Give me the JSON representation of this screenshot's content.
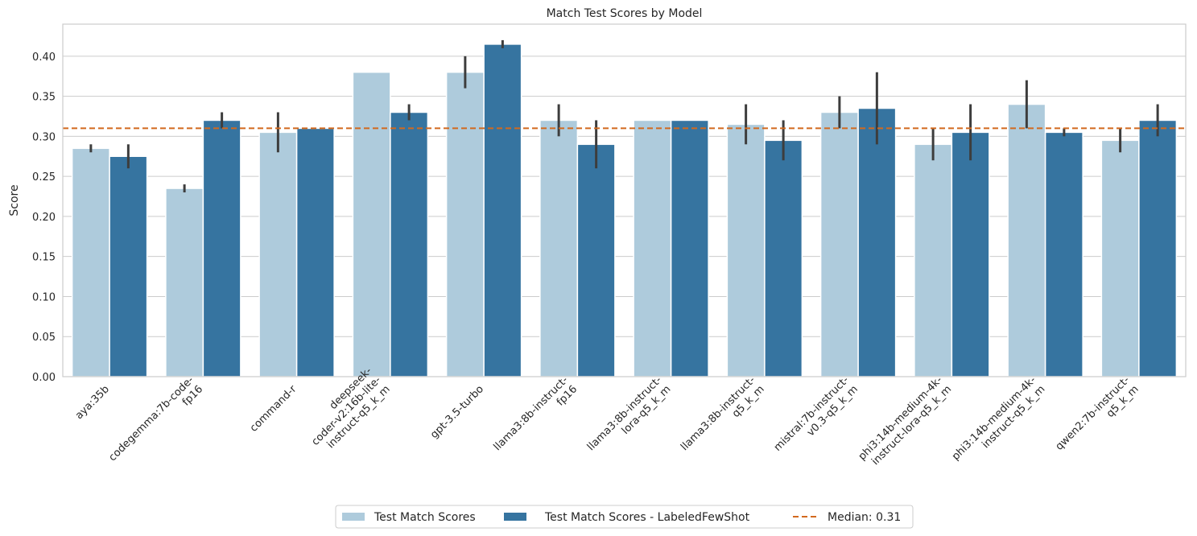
{
  "chart_data": {
    "type": "bar",
    "title": "Match Test Scores by Model",
    "xlabel": "",
    "ylabel": "Score",
    "ylim": [
      0,
      0.44
    ],
    "yticks": [
      "0.00",
      "0.05",
      "0.10",
      "0.15",
      "0.20",
      "0.25",
      "0.30",
      "0.35",
      "0.40"
    ],
    "grid": true,
    "legend_position": "bottom-center",
    "categories": [
      [
        "aya:35b"
      ],
      [
        "codegemma:7b-code-",
        "fp16"
      ],
      [
        "command-r"
      ],
      [
        "deepseek-",
        "coder-v2:16b-lite-",
        "instruct-q5_k_m"
      ],
      [
        "gpt-3.5-turbo"
      ],
      [
        "llama3:8b-instruct-",
        "fp16"
      ],
      [
        "llama3:8b-instruct-",
        "lora-q5_k_m"
      ],
      [
        "llama3:8b-instruct-",
        "q5_k_m"
      ],
      [
        "mistral:7b-instruct-",
        "v0.3-q5_k_m"
      ],
      [
        "phi3:14b-medium-4k-",
        "instruct-lora-q5_k_m"
      ],
      [
        "phi3:14b-medium-4k-",
        "instruct-q5_k_m"
      ],
      [
        "qwen2:7b-instruct-",
        "q5_k_m"
      ]
    ],
    "series": [
      {
        "name": "Test Match Scores",
        "color": "#aecbdc",
        "values": [
          0.285,
          0.235,
          0.305,
          0.38,
          0.38,
          0.32,
          0.32,
          0.315,
          0.33,
          0.29,
          0.34,
          0.295
        ],
        "error_low": [
          0.28,
          0.23,
          0.28,
          null,
          0.36,
          0.3,
          null,
          0.29,
          0.31,
          0.27,
          0.31,
          0.28
        ],
        "error_high": [
          0.29,
          0.24,
          0.33,
          null,
          0.4,
          0.34,
          null,
          0.34,
          0.35,
          0.31,
          0.37,
          0.31
        ]
      },
      {
        "name": "Test Match Scores - LabeledFewShot",
        "color": "#3674a0",
        "values": [
          0.275,
          0.32,
          0.31,
          0.33,
          0.415,
          0.29,
          0.32,
          0.295,
          0.335,
          0.305,
          0.305,
          0.32
        ],
        "error_low": [
          0.26,
          0.31,
          null,
          0.32,
          0.41,
          0.26,
          null,
          0.27,
          0.29,
          0.27,
          0.3,
          0.3
        ],
        "error_high": [
          0.29,
          0.33,
          null,
          0.34,
          0.42,
          0.32,
          null,
          0.32,
          0.38,
          0.34,
          0.31,
          0.34
        ]
      }
    ],
    "reference_line": {
      "label": "Median: 0.31",
      "value": 0.31,
      "color": "#d2691e"
    }
  }
}
